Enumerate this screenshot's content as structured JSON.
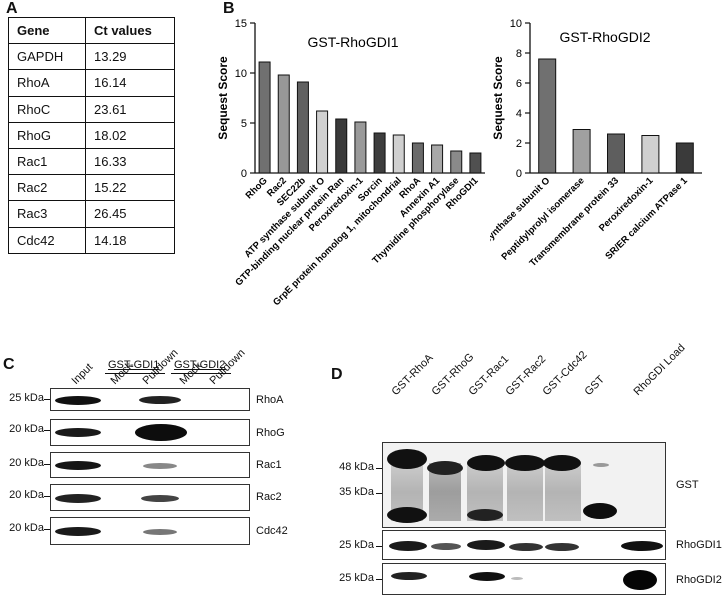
{
  "panels": {
    "a": "A",
    "b": "B",
    "c": "C",
    "d": "D"
  },
  "table": {
    "headers": [
      "Gene",
      "Ct values"
    ],
    "rows": [
      [
        "GAPDH",
        "13.29"
      ],
      [
        "RhoA",
        "16.14"
      ],
      [
        "RhoC",
        "23.61"
      ],
      [
        "RhoG",
        "18.02"
      ],
      [
        "Rac1",
        "16.33"
      ],
      [
        "Rac2",
        "15.22"
      ],
      [
        "Rac3",
        "26.45"
      ],
      [
        "Cdc42",
        "14.18"
      ]
    ]
  },
  "chart_data": [
    {
      "type": "bar",
      "title": "GST-RhoGDI1",
      "ylabel": "Sequest Score",
      "ylim": [
        0,
        15
      ],
      "yticks": [
        0,
        5,
        10,
        15
      ],
      "categories": [
        "RhoG",
        "Rac2",
        "SEC22b",
        "ATP synthase subunit O",
        "GTP-binding nuclear protein Ran",
        "Peroxiredoxin-1",
        "Sorcin",
        "GrpE protein homolog 1, mitochondrial",
        "RhoA",
        "Annexin A1",
        "Thymidine phosphorylase",
        "RhoGDI1"
      ],
      "values": [
        11.1,
        9.8,
        9.1,
        6.2,
        5.4,
        5.1,
        4.0,
        3.8,
        3.0,
        2.8,
        2.2,
        2.0
      ],
      "colors": [
        "#707070",
        "#989898",
        "#606060",
        "#d0d0d0",
        "#3a3a3a",
        "#9a9a9a",
        "#3e3e3e",
        "#d0d0d0",
        "#6a6a6a",
        "#a8a8a8",
        "#8a8a8a",
        "#505050"
      ]
    },
    {
      "type": "bar",
      "title": "GST-RhoGDI2",
      "ylabel": "Sequest Score",
      "ylim": [
        0,
        10
      ],
      "yticks": [
        0,
        2,
        4,
        6,
        8,
        10
      ],
      "categories": [
        "ATP synthase subunit O",
        "Peptidylprolyl isomerase",
        "Transmembrane protein 33",
        "Peroxiredoxin-1",
        "SR/ER calcium ATPase 1"
      ],
      "values": [
        7.6,
        2.9,
        2.6,
        2.5,
        2.0
      ],
      "colors": [
        "#707070",
        "#a0a0a0",
        "#5e5e5e",
        "#d0d0d0",
        "#3a3a3a"
      ]
    }
  ],
  "blot_c": {
    "group1": "GST-GDI1",
    "group2": "GST-GDI2",
    "lanes": [
      "Input",
      "Mock",
      "Pulldown",
      "Mock",
      "Pulldown"
    ],
    "rows": [
      {
        "kda": "25 kDa",
        "protein": "RhoA"
      },
      {
        "kda": "20 kDa",
        "protein": "RhoG"
      },
      {
        "kda": "20 kDa",
        "protein": "Rac1"
      },
      {
        "kda": "20 kDa",
        "protein": "Rac2"
      },
      {
        "kda": "20 kDa",
        "protein": "Cdc42"
      }
    ]
  },
  "blot_d": {
    "lanes": [
      "GST-RhoA",
      "GST-RhoG",
      "GST-Rac1",
      "GST-Rac2",
      "GST-Cdc42",
      "GST",
      "RhoGDI Load"
    ],
    "gst_kda": [
      "48 kDa",
      "35 kDa"
    ],
    "gst_label": "GST",
    "gdi1_kda": "25 kDa",
    "gdi1_label": "RhoGDI1",
    "gdi2_kda": "25 kDa",
    "gdi2_label": "RhoGDI2"
  }
}
